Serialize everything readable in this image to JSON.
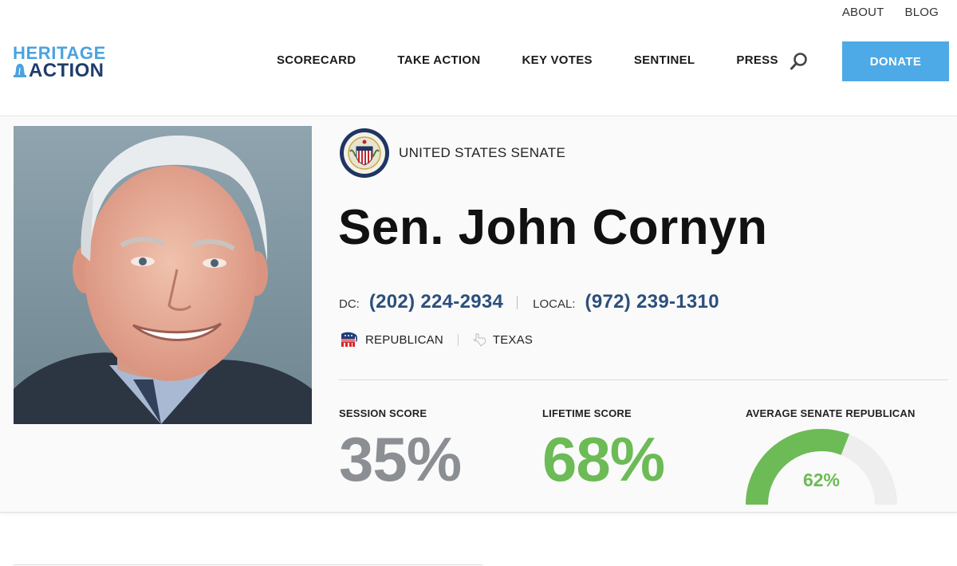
{
  "utility_nav": {
    "about": "ABOUT",
    "blog": "BLOG"
  },
  "logo": {
    "line1": "HERITAGE",
    "line2": "ACTION",
    "colors": {
      "line1": "#4aa3df",
      "line2": "#1f3c6b"
    }
  },
  "nav": {
    "items": [
      "SCORECARD",
      "TAKE ACTION",
      "KEY VOTES",
      "SENTINEL",
      "PRESS"
    ],
    "search_icon": "search-icon",
    "donate_label": "DONATE",
    "donate_color": "#4eaae6"
  },
  "member": {
    "chamber": "UNITED STATES SENATE",
    "chamber_icon": "senate-seal-icon",
    "name": "Sen. John Cornyn",
    "dc_label": "DC:",
    "dc_phone": "(202) 224-2934",
    "local_label": "LOCAL:",
    "local_phone": "(972) 239-1310",
    "party": "REPUBLICAN",
    "party_icon": "republican-elephant-icon",
    "state": "TEXAS",
    "state_icon": "texas-outline-icon",
    "phone_color": "#2c4f7c"
  },
  "scores": {
    "session": {
      "title": "SESSION SCORE",
      "value": "35%",
      "color": "#8b8f93"
    },
    "lifetime": {
      "title": "LIFETIME SCORE",
      "value": "68%",
      "color": "#6cbb56"
    },
    "average": {
      "title": "AVERAGE SENATE REPUBLICAN",
      "value": "62%",
      "fraction": 0.62,
      "color": "#6cbb56"
    }
  }
}
